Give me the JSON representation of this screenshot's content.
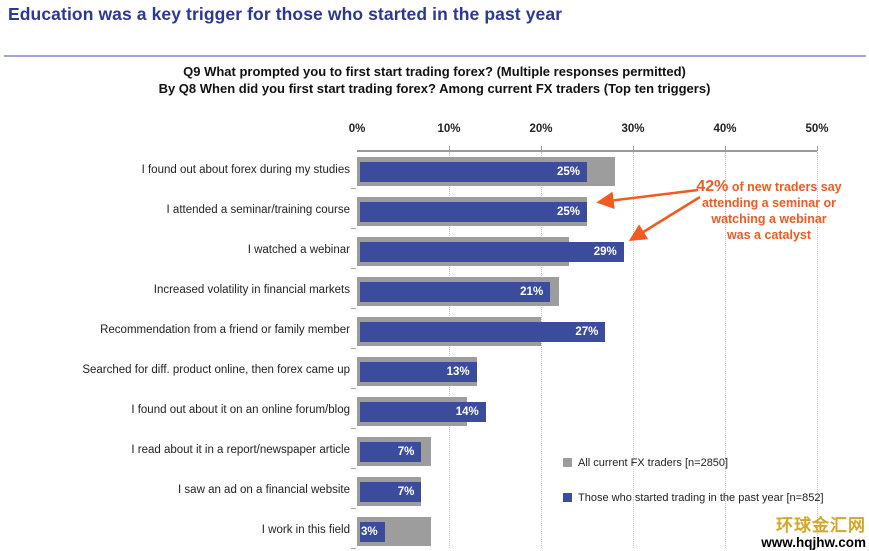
{
  "title": "Education was a key trigger for those who started in the past year",
  "subtitle_line1": "Q9 What prompted you to first start trading forex? (Multiple responses permitted)",
  "subtitle_line2": "By Q8 When did you first start trading forex? Among current FX traders (Top ten triggers)",
  "annotation": {
    "big": "42%",
    "rest": " of new traders say\nattending a seminar or\nwatching a webinar\nwas a catalyst"
  },
  "watermark": {
    "site_name": "环球金汇网",
    "site_url": "www.hqjhw.com"
  },
  "colors": {
    "title_blue": "#2B3896",
    "bar_blue": "#3C4C9C",
    "bar_gray": "#9D9D9D",
    "annotation_orange": "#F25A20",
    "divider": "#A3A6D3",
    "watermark_gold": "#D4A62A"
  },
  "chart_data": {
    "type": "bar",
    "orientation": "horizontal",
    "categories": [
      "I found out about forex during my studies",
      "I attended a seminar/training course",
      "I watched a webinar",
      "Increased volatility in financial markets",
      "Recommendation from a friend or family member",
      "Searched for diff. product online, then forex came up",
      "I found out about it on an online forum/blog",
      "I read about it in a report/newspaper article",
      "I saw an ad on a financial website",
      "I work in this field"
    ],
    "series": [
      {
        "name": "All current FX traders [n=2850]",
        "color": "#9D9D9D",
        "values": [
          28,
          25,
          23,
          22,
          20,
          13,
          12,
          8,
          7,
          8
        ]
      },
      {
        "name": "Those who started trading in the past year [n=852]",
        "color": "#3C4C9C",
        "values": [
          25,
          25,
          29,
          21,
          27,
          13,
          14,
          7,
          7,
          3
        ],
        "labels": [
          "25%",
          "25%",
          "29%",
          "21%",
          "27%",
          "13%",
          "14%",
          "7%",
          "7%",
          "3%"
        ]
      }
    ],
    "xticks": {
      "labels": [
        "0%",
        "10%",
        "20%",
        "30%",
        "40%",
        "50%"
      ],
      "values": [
        0,
        10,
        20,
        30,
        40,
        50
      ]
    },
    "xlim": [
      0,
      50
    ],
    "grid": "dotted-vertical",
    "legend_position": "bottom-right"
  }
}
